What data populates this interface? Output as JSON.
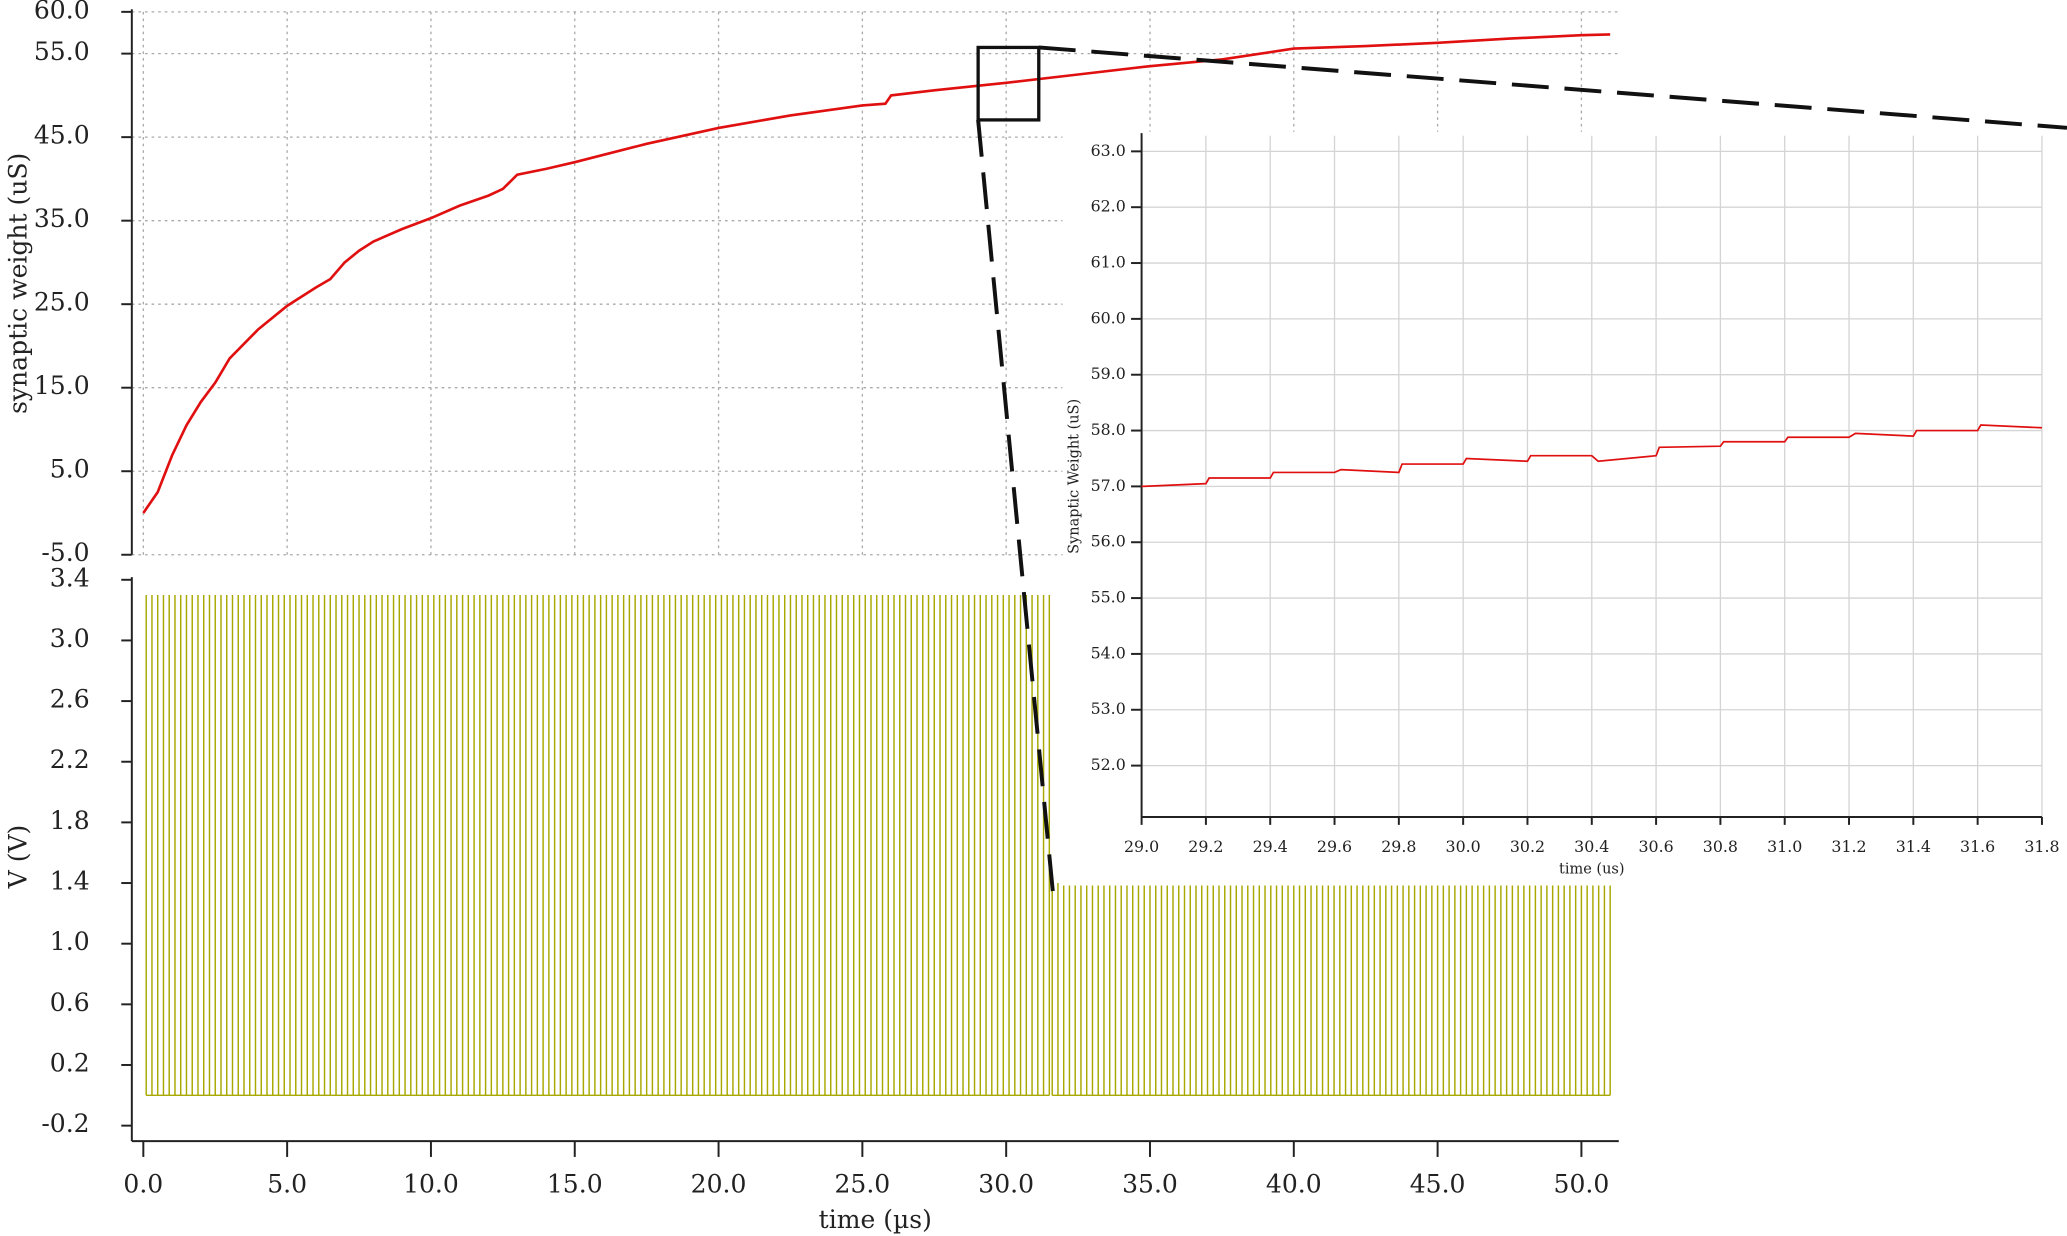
{
  "chart_data": [
    {
      "type": "line",
      "ylabel": "synaptic weight (uS)",
      "color": "#e01010",
      "x": [
        0,
        0.5,
        1,
        1.5,
        2,
        2.5,
        3,
        4,
        5,
        6,
        6.5,
        7,
        7.5,
        8,
        9,
        10,
        11,
        12,
        12.5,
        13,
        14,
        15,
        17.5,
        20,
        22.5,
        25,
        25.8,
        26,
        27.5,
        30,
        32.5,
        35,
        37.5,
        40,
        42.5,
        45,
        47.5,
        50,
        51
      ],
      "values": [
        0,
        2.5,
        6.9,
        10.5,
        13.3,
        15.6,
        18.5,
        22,
        24.8,
        27,
        28,
        30,
        31.4,
        32.5,
        34,
        35.3,
        36.8,
        38,
        38.8,
        40.5,
        41.2,
        42,
        44.2,
        46.1,
        47.6,
        48.8,
        49,
        50,
        50.6,
        51.5,
        52.5,
        53.5,
        54.3,
        55.6,
        55.9,
        56.3,
        56.8,
        57.2,
        57.3
      ],
      "xlim": [
        -0.4,
        51.3
      ],
      "ylim": [
        -5,
        60
      ],
      "xticks": [
        0,
        5,
        10,
        15,
        20,
        25,
        30,
        35,
        40,
        45,
        50
      ],
      "yticks": [
        {
          "value": -5,
          "label": "-5.0"
        },
        {
          "value": 5,
          "label": "5.0"
        },
        {
          "value": 15,
          "label": "15.0"
        },
        {
          "value": 25,
          "label": "25.0"
        },
        {
          "value": 35,
          "label": "35.0"
        },
        {
          "value": 45,
          "label": "45.0"
        },
        {
          "value": 55,
          "label": "55.0"
        },
        {
          "value": 60,
          "label": "60.0"
        }
      ],
      "grid": true
    },
    {
      "type": "line",
      "ylabel": "Synaptic Weight (uS)",
      "xlabel": "time (us)",
      "color": "#e01010",
      "x": [
        29,
        29.2,
        29.21,
        29.4,
        29.41,
        29.6,
        29.62,
        29.8,
        29.81,
        30,
        30.01,
        30.2,
        30.21,
        30.4,
        30.42,
        30.6,
        30.61,
        30.8,
        30.81,
        31,
        31.01,
        31.2,
        31.22,
        31.4,
        31.41,
        31.6,
        31.61,
        31.8
      ],
      "values": [
        57,
        57.05,
        57.15,
        57.15,
        57.25,
        57.25,
        57.3,
        57.25,
        57.4,
        57.4,
        57.5,
        57.45,
        57.55,
        57.55,
        57.45,
        57.55,
        57.7,
        57.72,
        57.8,
        57.8,
        57.88,
        57.88,
        57.95,
        57.9,
        58,
        58,
        58.1,
        58.05
      ],
      "xlim": [
        29,
        31.8
      ],
      "ylim": [
        51.08,
        63.28
      ],
      "xticks": [
        {
          "value": 29,
          "label": "29.0"
        },
        29.2,
        29.4,
        29.6,
        29.8,
        {
          "value": 30,
          "label": "30.0"
        },
        30.2,
        30.4,
        30.6,
        30.8,
        {
          "value": 31,
          "label": "31.0"
        },
        31.2,
        31.4,
        31.6,
        31.8
      ],
      "yticks": [
        {
          "value": 52,
          "label": "52.0"
        },
        {
          "value": 53,
          "label": "53.0"
        },
        {
          "value": 54,
          "label": "54.0"
        },
        {
          "value": 55,
          "label": "55.0"
        },
        {
          "value": 56,
          "label": "56.0"
        },
        {
          "value": 57,
          "label": "57.0"
        },
        {
          "value": 58,
          "label": "58.0"
        },
        {
          "value": 59,
          "label": "59.0"
        },
        {
          "value": 60,
          "label": "60.0"
        },
        {
          "value": 61,
          "label": "61.0"
        },
        {
          "value": 62,
          "label": "62.0"
        },
        {
          "value": 63,
          "label": "63.0"
        }
      ],
      "grid": true
    },
    {
      "type": "pulse",
      "ylabel": "V (V)",
      "xlabel": "time (µs)",
      "color": "#a8a800",
      "pulse_trains": [
        {
          "start": 0.1,
          "end": 31.5,
          "period": 0.2,
          "amplitude": 3.3
        },
        {
          "start": 31.6,
          "end": 51,
          "period": 0.2,
          "amplitude": 1.4
        }
      ],
      "xlim": [
        -0.4,
        51.3
      ],
      "ylim": [
        -0.25,
        3.4
      ],
      "xticks": [
        {
          "value": 0,
          "label": "0.0"
        },
        {
          "value": 5,
          "label": "5.0"
        },
        {
          "value": 10,
          "label": "10.0"
        },
        {
          "value": 15,
          "label": "15.0"
        },
        {
          "value": 20,
          "label": "20.0"
        },
        {
          "value": 25,
          "label": "25.0"
        },
        {
          "value": 30,
          "label": "30.0"
        },
        {
          "value": 35,
          "label": "35.0"
        },
        {
          "value": 40,
          "label": "40.0"
        },
        {
          "value": 45,
          "label": "45.0"
        },
        {
          "value": 50,
          "label": "50.0"
        }
      ],
      "yticks": [
        -0.2,
        0.2,
        0.6,
        {
          "value": 1,
          "label": "1.0"
        },
        1.4,
        1.8,
        2.2,
        2.6,
        {
          "value": 3,
          "label": "3.0"
        },
        3.4
      ],
      "grid": false
    }
  ]
}
